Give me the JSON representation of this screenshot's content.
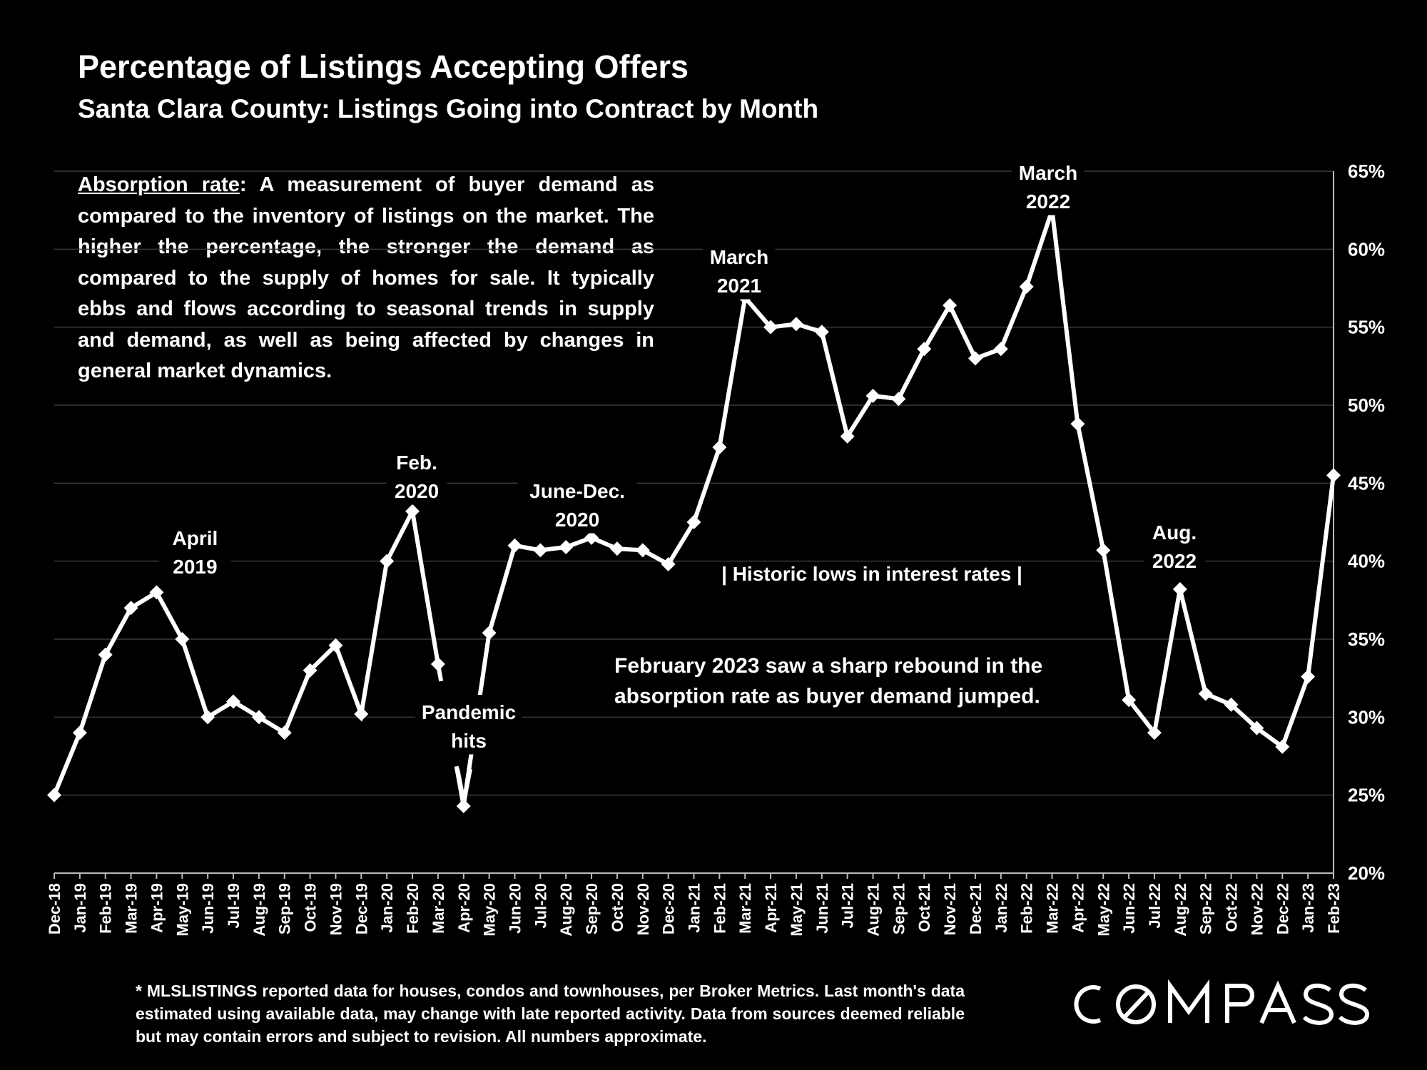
{
  "title": "Percentage of Listings Accepting Offers",
  "subtitle": "Santa Clara County: Listings Going into Contract by Month",
  "description": {
    "term": "Absorption rate",
    "text": ":  A measurement of buyer demand as compared to the inventory of listings on the market. The higher the percentage, the stronger the demand as compared to the supply of homes for sale. It typically ebbs and flows according to seasonal trends in supply and demand, as well as being affected by changes in general market dynamics."
  },
  "footnote": "* MLSLISTINGS reported data for houses, condos and townhouses, per Broker Metrics. Last month's data estimated using available data, may change with late reported activity. Data from sources deemed reliable but may contain errors and subject to revision. All numbers approximate.",
  "logo": "COMPASS",
  "colors": {
    "background": "#000000",
    "line": "#ffffff",
    "grid": "#3a3a3a",
    "text": "#ffffff"
  },
  "chart_data": {
    "type": "line",
    "y_unit": "%",
    "ylim": [
      20,
      65
    ],
    "y_ticks": [
      20,
      25,
      30,
      35,
      40,
      45,
      50,
      55,
      60,
      65
    ],
    "y_tick_labels": [
      "20%",
      "25%",
      "30%",
      "35%",
      "40%",
      "45%",
      "50%",
      "55%",
      "60%",
      "65%"
    ],
    "y_axis_position": "right",
    "grid": true,
    "marker": "diamond",
    "categories": [
      "Dec-18",
      "Jan-19",
      "Feb-19",
      "Mar-19",
      "Apr-19",
      "May-19",
      "Jun-19",
      "Jul-19",
      "Aug-19",
      "Sep-19",
      "Oct-19",
      "Nov-19",
      "Dec-19",
      "Jan-20",
      "Feb-20",
      "Mar-20",
      "Apr-20",
      "May-20",
      "Jun-20",
      "Jul-20",
      "Aug-20",
      "Sep-20",
      "Oct-20",
      "Nov-20",
      "Dec-20",
      "Jan-21",
      "Feb-21",
      "Mar-21",
      "Apr-21",
      "May-21",
      "Jun-21",
      "Jul-21",
      "Aug-21",
      "Sep-21",
      "Oct-21",
      "Nov-21",
      "Dec-21",
      "Jan-22",
      "Feb-22",
      "Mar-22",
      "Apr-22",
      "May-22",
      "Jun-22",
      "Jul-22",
      "Aug-22",
      "Sep-22",
      "Oct-22",
      "Nov-22",
      "Dec-22",
      "Jan-23",
      "Feb-23"
    ],
    "values": [
      25.0,
      29.0,
      34.0,
      37.0,
      38.0,
      35.0,
      30.0,
      31.0,
      30.0,
      29.0,
      33.0,
      34.6,
      30.2,
      40.0,
      43.2,
      33.4,
      24.3,
      35.4,
      41.0,
      40.7,
      40.9,
      41.5,
      40.8,
      40.7,
      39.8,
      42.5,
      47.3,
      56.9,
      55.0,
      55.2,
      54.7,
      48.0,
      50.6,
      50.4,
      53.6,
      56.4,
      53.0,
      53.6,
      57.6,
      62.5,
      48.8,
      40.7,
      31.1,
      29.0,
      38.2,
      31.5,
      30.8,
      29.3,
      28.1,
      32.6,
      45.5
    ],
    "annotations": [
      {
        "lines": [
          "April",
          "2019"
        ],
        "category": "Apr-19",
        "value": 38.0
      },
      {
        "lines": [
          "Feb.",
          "2020"
        ],
        "category": "Feb-20",
        "value": 43.2
      },
      {
        "lines": [
          "June-Dec.",
          "2020"
        ],
        "category": "Sep-20",
        "value": 41.5
      },
      {
        "lines": [
          "Pandemic",
          "hits"
        ],
        "category": "Apr-20",
        "value": 24.3
      },
      {
        "lines": [
          "March",
          "2021"
        ],
        "category": "Mar-21",
        "value": 56.9
      },
      {
        "lines": [
          "March",
          "2022"
        ],
        "category": "Mar-22",
        "value": 62.5
      },
      {
        "lines": [
          "Aug.",
          "2022"
        ],
        "category": "Aug-22",
        "value": 38.2
      },
      {
        "lines": [
          "| Historic lows in interest rates |"
        ]
      },
      {
        "lines": [
          "February 2023 saw a sharp rebound in the",
          "absorption rate as buyer demand jumped."
        ]
      }
    ]
  }
}
